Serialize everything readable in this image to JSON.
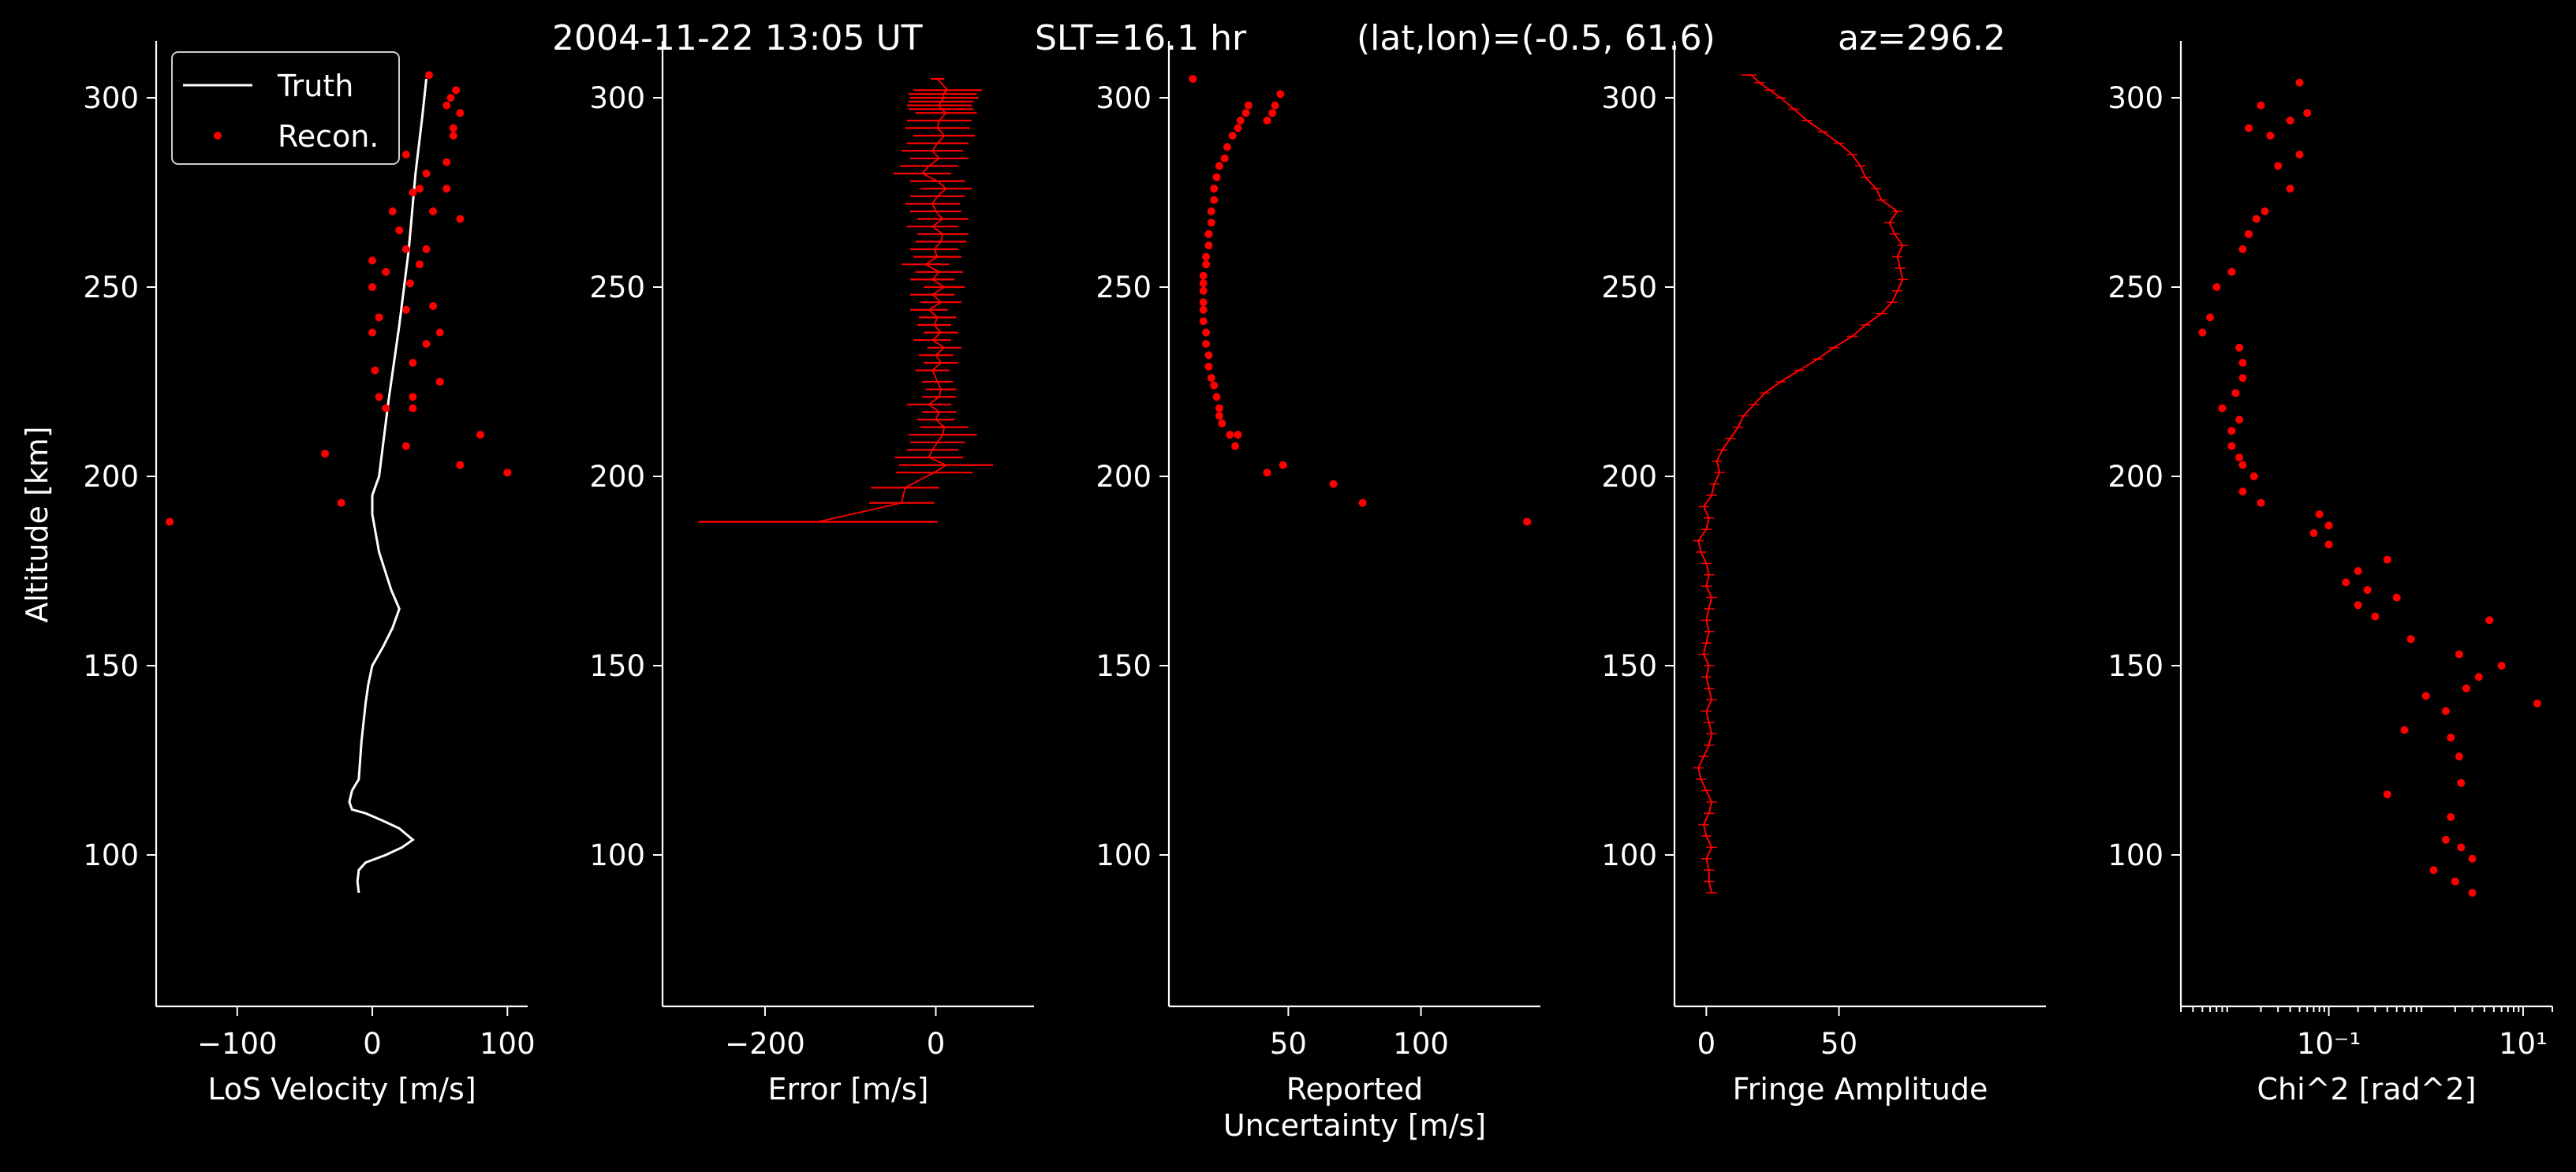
{
  "title": {
    "time": "2004-11-22 13:05 UT",
    "slt": "SLT=16.1 hr",
    "latlon": "(lat,lon)=(-0.5, 61.6)",
    "az": "az=296.2"
  },
  "legend": {
    "truth_label": "Truth",
    "recon_label": "Recon.",
    "placement": "upper-left of first panel"
  },
  "colors": {
    "background": "#000000",
    "axes": "#ffffff",
    "truth": "#ffffff",
    "recon": "#ff0000"
  },
  "chart_data": [
    {
      "type": "line",
      "xlabel": "LoS Velocity [m/s]",
      "ylabel": "Altitude [km]",
      "xlim": [
        -160,
        115
      ],
      "ylim": [
        60,
        315
      ],
      "xticks": [
        -100,
        0,
        100
      ],
      "xtick_labels": [
        "−100",
        "0",
        "100"
      ],
      "yticks": [
        100,
        150,
        200,
        250,
        300
      ],
      "ytick_labels": [
        "100",
        "150",
        "200",
        "250",
        "300"
      ],
      "series": [
        {
          "name": "Truth",
          "style": "line",
          "x": [
            -10,
            -11,
            -10,
            -5,
            10,
            22,
            30,
            20,
            8,
            -5,
            -15,
            -17,
            -15,
            -10,
            -8,
            -5,
            -3,
            0,
            8,
            15,
            20,
            14,
            5,
            0,
            0,
            5,
            12,
            20,
            27,
            32,
            37,
            40
          ],
          "y": [
            90,
            93,
            96,
            98,
            100,
            102,
            104,
            107,
            109,
            111,
            112,
            114,
            117,
            120,
            130,
            140,
            145,
            150,
            155,
            160,
            165,
            170,
            180,
            190,
            195,
            200,
            220,
            240,
            260,
            280,
            295,
            305
          ]
        },
        {
          "name": "Recon.",
          "style": "points",
          "x": [
            -150,
            -23,
            -35,
            65,
            100,
            80,
            25,
            10,
            30,
            30,
            5,
            50,
            2,
            30,
            40,
            0,
            50,
            5,
            25,
            45,
            0,
            28,
            10,
            35,
            0,
            40,
            25,
            20,
            65,
            45,
            15,
            30,
            35,
            55,
            40,
            55,
            25,
            10,
            60,
            60,
            65,
            55,
            58,
            62,
            42
          ],
          "y": [
            188,
            193,
            206,
            203,
            201,
            211,
            208,
            218,
            218,
            221,
            221,
            225,
            228,
            230,
            235,
            238,
            238,
            242,
            244,
            245,
            250,
            251,
            254,
            256,
            257,
            260,
            260,
            265,
            268,
            270,
            270,
            275,
            276,
            276,
            280,
            283,
            285,
            288,
            290,
            292,
            296,
            298,
            300,
            302,
            306
          ]
        }
      ]
    },
    {
      "type": "scatter",
      "xlabel": "Error [m/s]",
      "ylabel": "",
      "xlim": [
        -320,
        115
      ],
      "ylim": [
        60,
        315
      ],
      "xticks": [
        -200,
        0
      ],
      "xtick_labels": [
        "−200",
        "0"
      ],
      "yticks": [
        100,
        150,
        200,
        250,
        300
      ],
      "ytick_labels": [
        "100",
        "150",
        "200",
        "250",
        "300"
      ],
      "series": [
        {
          "name": "",
          "style": "errorbar",
          "x": [
            -138,
            -40,
            -36,
            -2,
            12,
            -8,
            -4,
            2,
            8,
            10,
            0,
            4,
            -8,
            4,
            6,
            2,
            -4,
            6,
            0,
            10,
            -4,
            6,
            -2,
            2,
            -8,
            6,
            -4,
            10,
            -4,
            4,
            -12,
            2,
            -2,
            6,
            8,
            -4,
            8,
            0,
            -4,
            2,
            12,
            2,
            -16,
            -8,
            4,
            -4,
            2,
            10,
            2,
            4,
            12,
            6,
            4,
            6,
            10,
            8,
            14,
            2
          ],
          "y": [
            188,
            193,
            197,
            201,
            203,
            205,
            207,
            209,
            211,
            213,
            215,
            217,
            219,
            221,
            223,
            225,
            228,
            230,
            232,
            234,
            236,
            238,
            240,
            242,
            244,
            246,
            248,
            250,
            252,
            254,
            256,
            258,
            260,
            262,
            264,
            266,
            268,
            270,
            272,
            274,
            276,
            278,
            280,
            282,
            284,
            286,
            288,
            290,
            292,
            294,
            296,
            297,
            298,
            299,
            300,
            301,
            302,
            305
          ],
          "xerr": [
            140,
            38,
            40,
            45,
            55,
            40,
            30,
            32,
            40,
            28,
            22,
            20,
            26,
            20,
            18,
            18,
            20,
            20,
            20,
            20,
            22,
            20,
            20,
            22,
            22,
            24,
            26,
            24,
            26,
            28,
            28,
            28,
            28,
            30,
            30,
            30,
            30,
            30,
            32,
            32,
            30,
            32,
            34,
            34,
            34,
            36,
            36,
            36,
            38,
            38,
            36,
            38,
            38,
            38,
            40,
            40,
            40,
            8
          ]
        }
      ]
    },
    {
      "type": "scatter",
      "xlabel": "Reported\nUncertainty [m/s]",
      "ylabel": "",
      "xlim": [
        5,
        145
      ],
      "ylim": [
        60,
        315
      ],
      "xticks": [
        50,
        100
      ],
      "xtick_labels": [
        "50",
        "100"
      ],
      "yticks": [
        100,
        150,
        200,
        250,
        300
      ],
      "ytick_labels": [
        "100",
        "150",
        "200",
        "250",
        "300"
      ],
      "series": [
        {
          "name": "",
          "style": "points",
          "x": [
            140,
            78,
            67,
            48,
            42,
            30,
            28,
            31,
            25,
            24,
            24,
            23,
            22,
            21,
            20,
            20,
            19,
            19,
            18,
            18,
            18,
            18,
            18,
            18,
            19,
            19,
            20,
            20,
            21,
            21,
            22,
            22,
            23,
            24,
            26,
            27,
            29,
            31,
            32,
            34,
            35,
            42,
            44,
            45,
            47,
            14
          ],
          "y": [
            188,
            193,
            198,
            203,
            201,
            208,
            211,
            211,
            214,
            216,
            218,
            221,
            224,
            226,
            229,
            232,
            235,
            238,
            241,
            244,
            246,
            249,
            251,
            253,
            256,
            258,
            261,
            264,
            267,
            270,
            273,
            276,
            279,
            282,
            284,
            287,
            290,
            292,
            294,
            296,
            298,
            294,
            296,
            298,
            301,
            305
          ]
        }
      ]
    },
    {
      "type": "line",
      "xlabel": "Fringe Amplitude",
      "ylabel": "",
      "xlim": [
        -12,
        128
      ],
      "ylim": [
        60,
        315
      ],
      "xticks": [
        0,
        50
      ],
      "xtick_labels": [
        "0",
        "50"
      ],
      "yticks": [
        100,
        150,
        200,
        250,
        300
      ],
      "ytick_labels": [
        "100",
        "150",
        "200",
        "250",
        "300"
      ],
      "series": [
        {
          "name": "",
          "style": "line-with-xerr",
          "x": [
            2,
            1,
            1,
            0,
            2,
            0,
            -1,
            1,
            2,
            0,
            -2,
            -3,
            -1,
            1,
            2,
            1,
            0,
            2,
            1,
            0,
            1,
            -1,
            0,
            1,
            0,
            1,
            2,
            0,
            1,
            0,
            -2,
            -3,
            0,
            1,
            -1,
            2,
            3,
            5,
            4,
            6,
            9,
            12,
            14,
            18,
            22,
            28,
            35,
            42,
            48,
            55,
            60,
            66,
            70,
            72,
            74,
            73,
            72,
            74,
            71,
            69,
            72,
            66,
            64,
            60,
            58,
            55,
            50,
            44,
            38,
            33,
            28,
            24,
            20,
            17,
            15
          ],
          "y": [
            90,
            93,
            96,
            99,
            102,
            105,
            108,
            111,
            114,
            117,
            120,
            123,
            126,
            129,
            132,
            135,
            138,
            141,
            144,
            147,
            150,
            153,
            156,
            159,
            162,
            165,
            168,
            171,
            174,
            177,
            180,
            183,
            186,
            189,
            192,
            195,
            198,
            201,
            204,
            207,
            210,
            213,
            216,
            219,
            222,
            225,
            228,
            231,
            234,
            237,
            240,
            243,
            246,
            249,
            252,
            255,
            258,
            261,
            264,
            267,
            270,
            273,
            276,
            279,
            282,
            285,
            288,
            291,
            294,
            297,
            300,
            302,
            304,
            306,
            306
          ],
          "xerr": 2
        }
      ]
    },
    {
      "type": "scatter",
      "xlabel": "Chi^2 [rad^2]",
      "ylabel": "",
      "xscale": "log",
      "xlim": [
        0.003,
        20
      ],
      "ylim": [
        60,
        315
      ],
      "xticks": [
        0.1,
        10
      ],
      "xtick_labels": [
        "10⁻¹",
        "10¹"
      ],
      "yticks": [
        100,
        150,
        200,
        250,
        300
      ],
      "ytick_labels": [
        "100",
        "150",
        "200",
        "250",
        "300"
      ],
      "series": [
        {
          "name": "",
          "style": "points",
          "x": [
            3,
            2,
            1.2,
            3,
            2.3,
            1.6,
            1.8,
            0.4,
            2.3,
            2.2,
            1.8,
            0.6,
            1.6,
            14,
            1,
            2.6,
            3.5,
            6,
            2.2,
            0.7,
            4.5,
            0.3,
            0.2,
            0.5,
            0.25,
            0.15,
            0.2,
            0.4,
            0.1,
            0.07,
            0.1,
            0.08,
            0.02,
            0.013,
            0.017,
            0.013,
            0.012,
            0.01,
            0.01,
            0.012,
            0.008,
            0.011,
            0.013,
            0.013,
            0.012,
            0.005,
            0.006,
            0.007,
            0.01,
            0.013,
            0.015,
            0.018,
            0.022,
            0.04,
            0.03,
            0.05,
            0.025,
            0.015,
            0.04,
            0.06,
            0.02,
            0.05
          ],
          "y": [
            90,
            93,
            96,
            99,
            102,
            104,
            110,
            116,
            119,
            126,
            131,
            133,
            138,
            140,
            142,
            144,
            147,
            150,
            153,
            157,
            162,
            163,
            166,
            168,
            170,
            172,
            175,
            178,
            182,
            185,
            187,
            190,
            193,
            196,
            200,
            203,
            205,
            208,
            212,
            215,
            218,
            222,
            226,
            230,
            234,
            238,
            242,
            250,
            254,
            260,
            264,
            268,
            270,
            276,
            282,
            285,
            290,
            292,
            294,
            296,
            298,
            304
          ]
        }
      ]
    }
  ]
}
